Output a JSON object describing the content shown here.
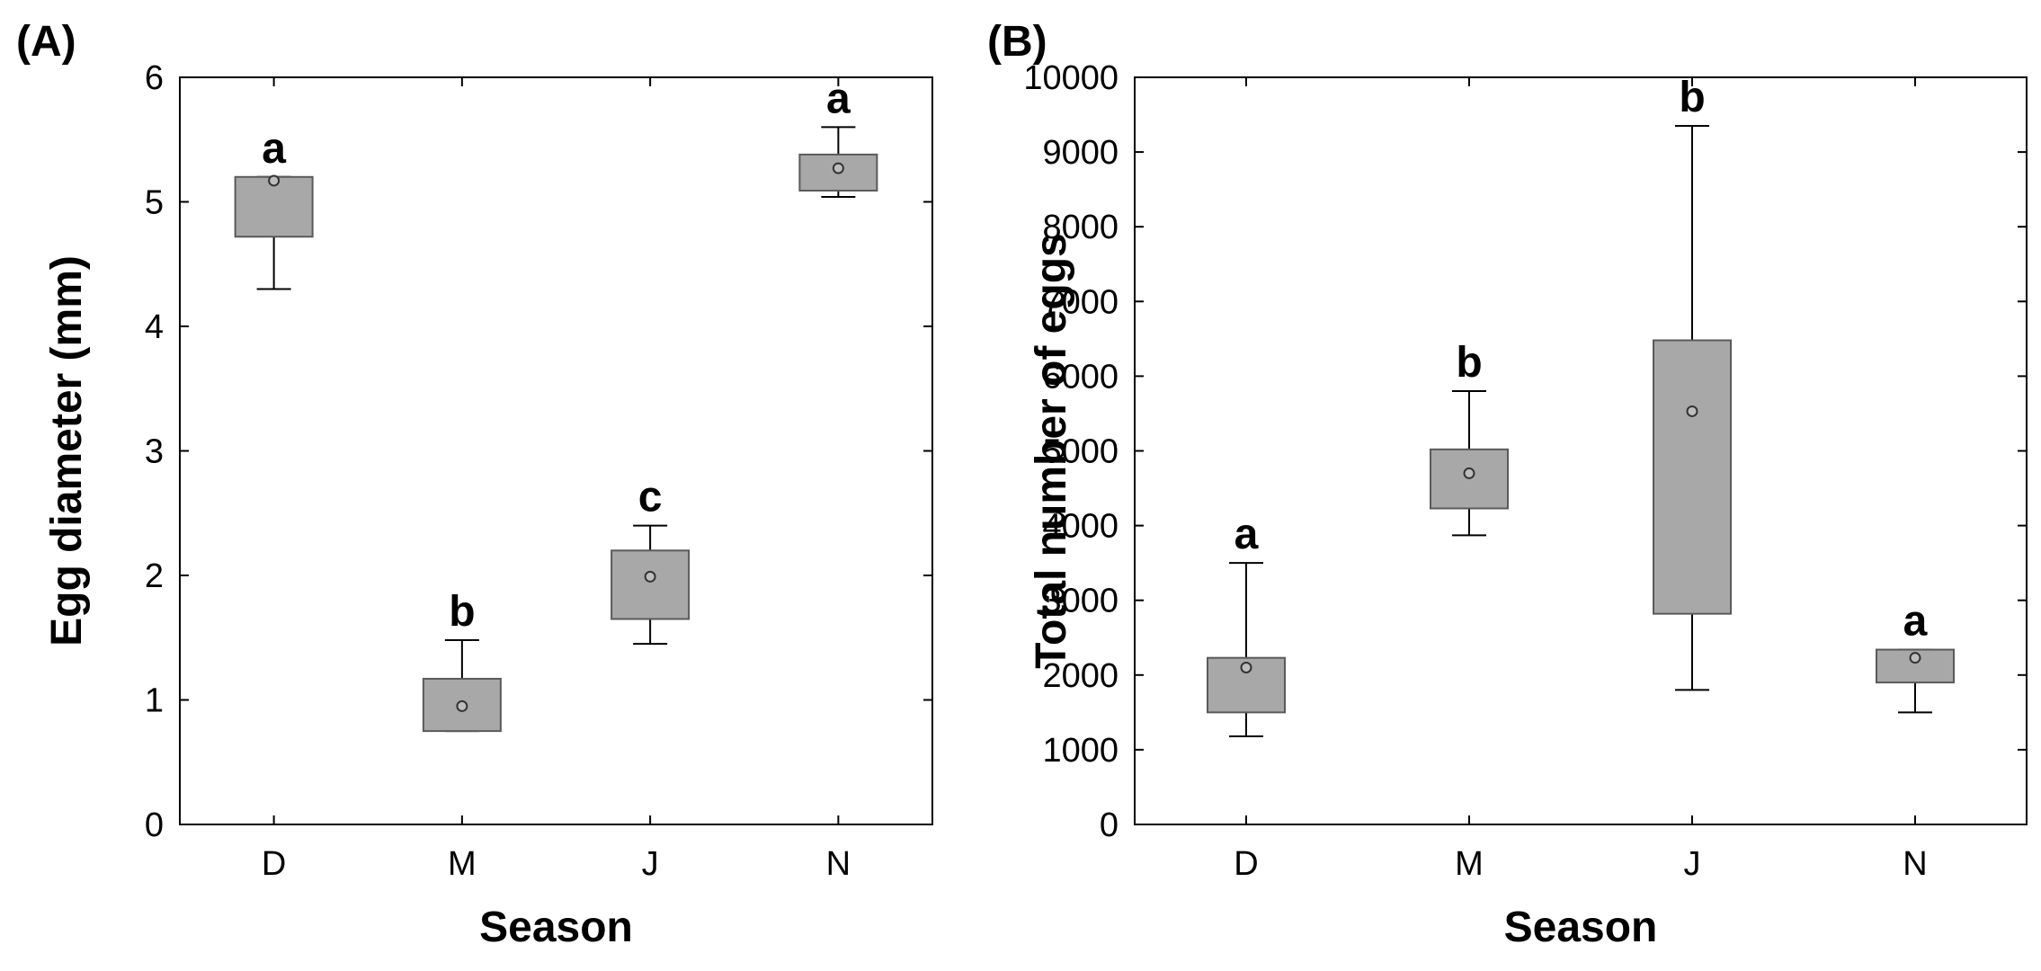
{
  "chart_data": [
    {
      "type": "box",
      "panel_label": "(A)",
      "title": "",
      "xlabel": "Season",
      "ylabel": "Egg diameter (mm)",
      "ylim": [
        0,
        6
      ],
      "yticks": [
        0,
        1,
        2,
        3,
        4,
        5,
        6
      ],
      "ytick_labels": [
        "0",
        "1",
        "2",
        "3",
        "4",
        "5",
        "6"
      ],
      "categories": [
        "D",
        "M",
        "J",
        "N"
      ],
      "boxes": [
        {
          "category": "D",
          "whisker_low": 4.3,
          "q1": 4.72,
          "mean": 5.17,
          "q3": 5.2,
          "whisker_high": 5.2,
          "letter": "a"
        },
        {
          "category": "M",
          "whisker_low": 0.75,
          "q1": 0.75,
          "mean": 0.95,
          "q3": 1.17,
          "whisker_high": 1.48,
          "letter": "b"
        },
        {
          "category": "J",
          "whisker_low": 1.45,
          "q1": 1.65,
          "mean": 1.99,
          "q3": 2.2,
          "whisker_high": 2.4,
          "letter": "c"
        },
        {
          "category": "N",
          "whisker_low": 5.04,
          "q1": 5.09,
          "mean": 5.27,
          "q3": 5.38,
          "whisker_high": 5.6,
          "letter": "a"
        }
      ]
    },
    {
      "type": "box",
      "panel_label": "(B)",
      "title": "",
      "xlabel": "Season",
      "ylabel": "Total number of eggs",
      "ylim": [
        0,
        10000
      ],
      "yticks": [
        0,
        1000,
        2000,
        3000,
        4000,
        5000,
        6000,
        7000,
        8000,
        9000,
        10000
      ],
      "ytick_labels": [
        "0",
        "1000",
        "2000",
        "3000",
        "4000",
        "5000",
        "6000",
        "7000",
        "8000",
        "9000",
        "10000"
      ],
      "categories": [
        "D",
        "M",
        "J",
        "N"
      ],
      "boxes": [
        {
          "category": "D",
          "whisker_low": 1180,
          "q1": 1500,
          "mean": 2100,
          "q3": 2230,
          "whisker_high": 3500,
          "letter": "a"
        },
        {
          "category": "M",
          "whisker_low": 3870,
          "q1": 4230,
          "mean": 4700,
          "q3": 5020,
          "whisker_high": 5800,
          "letter": "b"
        },
        {
          "category": "J",
          "whisker_low": 1800,
          "q1": 2820,
          "mean": 5530,
          "q3": 6480,
          "whisker_high": 9350,
          "letter": "b"
        },
        {
          "category": "N",
          "whisker_low": 1500,
          "q1": 1900,
          "mean": 2230,
          "q3": 2340,
          "whisker_high": 2340,
          "letter": "a"
        }
      ]
    }
  ],
  "colors": {
    "box_fill": "#a8a8a8",
    "box_stroke": "#5a5a5a",
    "axis": "#000000",
    "mean_marker_stroke": "#333333",
    "mean_marker_fill": "#bdbdbd"
  }
}
